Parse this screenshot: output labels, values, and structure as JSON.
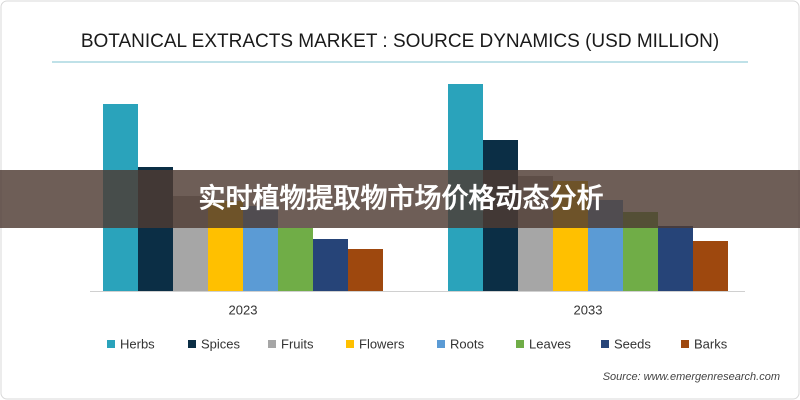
{
  "chart_data": {
    "type": "bar",
    "title": "BOTANICAL EXTRACTS MARKET : SOURCE DYNAMICS (USD MILLION)",
    "categories": [
      "2023",
      "2033"
    ],
    "series": [
      {
        "name": "Herbs",
        "color": "#2aa3bb",
        "values": [
          187,
          207
        ]
      },
      {
        "name": "Spices",
        "color": "#0b2e45",
        "values": [
          124,
          151
        ]
      },
      {
        "name": "Fruits",
        "color": "#a6a6a6",
        "values": [
          95,
          115
        ]
      },
      {
        "name": "Flowers",
        "color": "#ffc000",
        "values": [
          90,
          110
        ]
      },
      {
        "name": "Roots",
        "color": "#5b9bd5",
        "values": [
          85,
          91
        ]
      },
      {
        "name": "Leaves",
        "color": "#70ad47",
        "values": [
          63,
          79
        ]
      },
      {
        "name": "Seeds",
        "color": "#264478",
        "values": [
          52,
          65
        ]
      },
      {
        "name": "Barks",
        "color": "#9e480e",
        "values": [
          42,
          50
        ]
      }
    ],
    "ylim": [
      0,
      220
    ],
    "legend": "bottom",
    "source": "Source: www.emergenresearch.com"
  },
  "overlay": {
    "text": "实时植物提取物市场价格动态分析"
  }
}
